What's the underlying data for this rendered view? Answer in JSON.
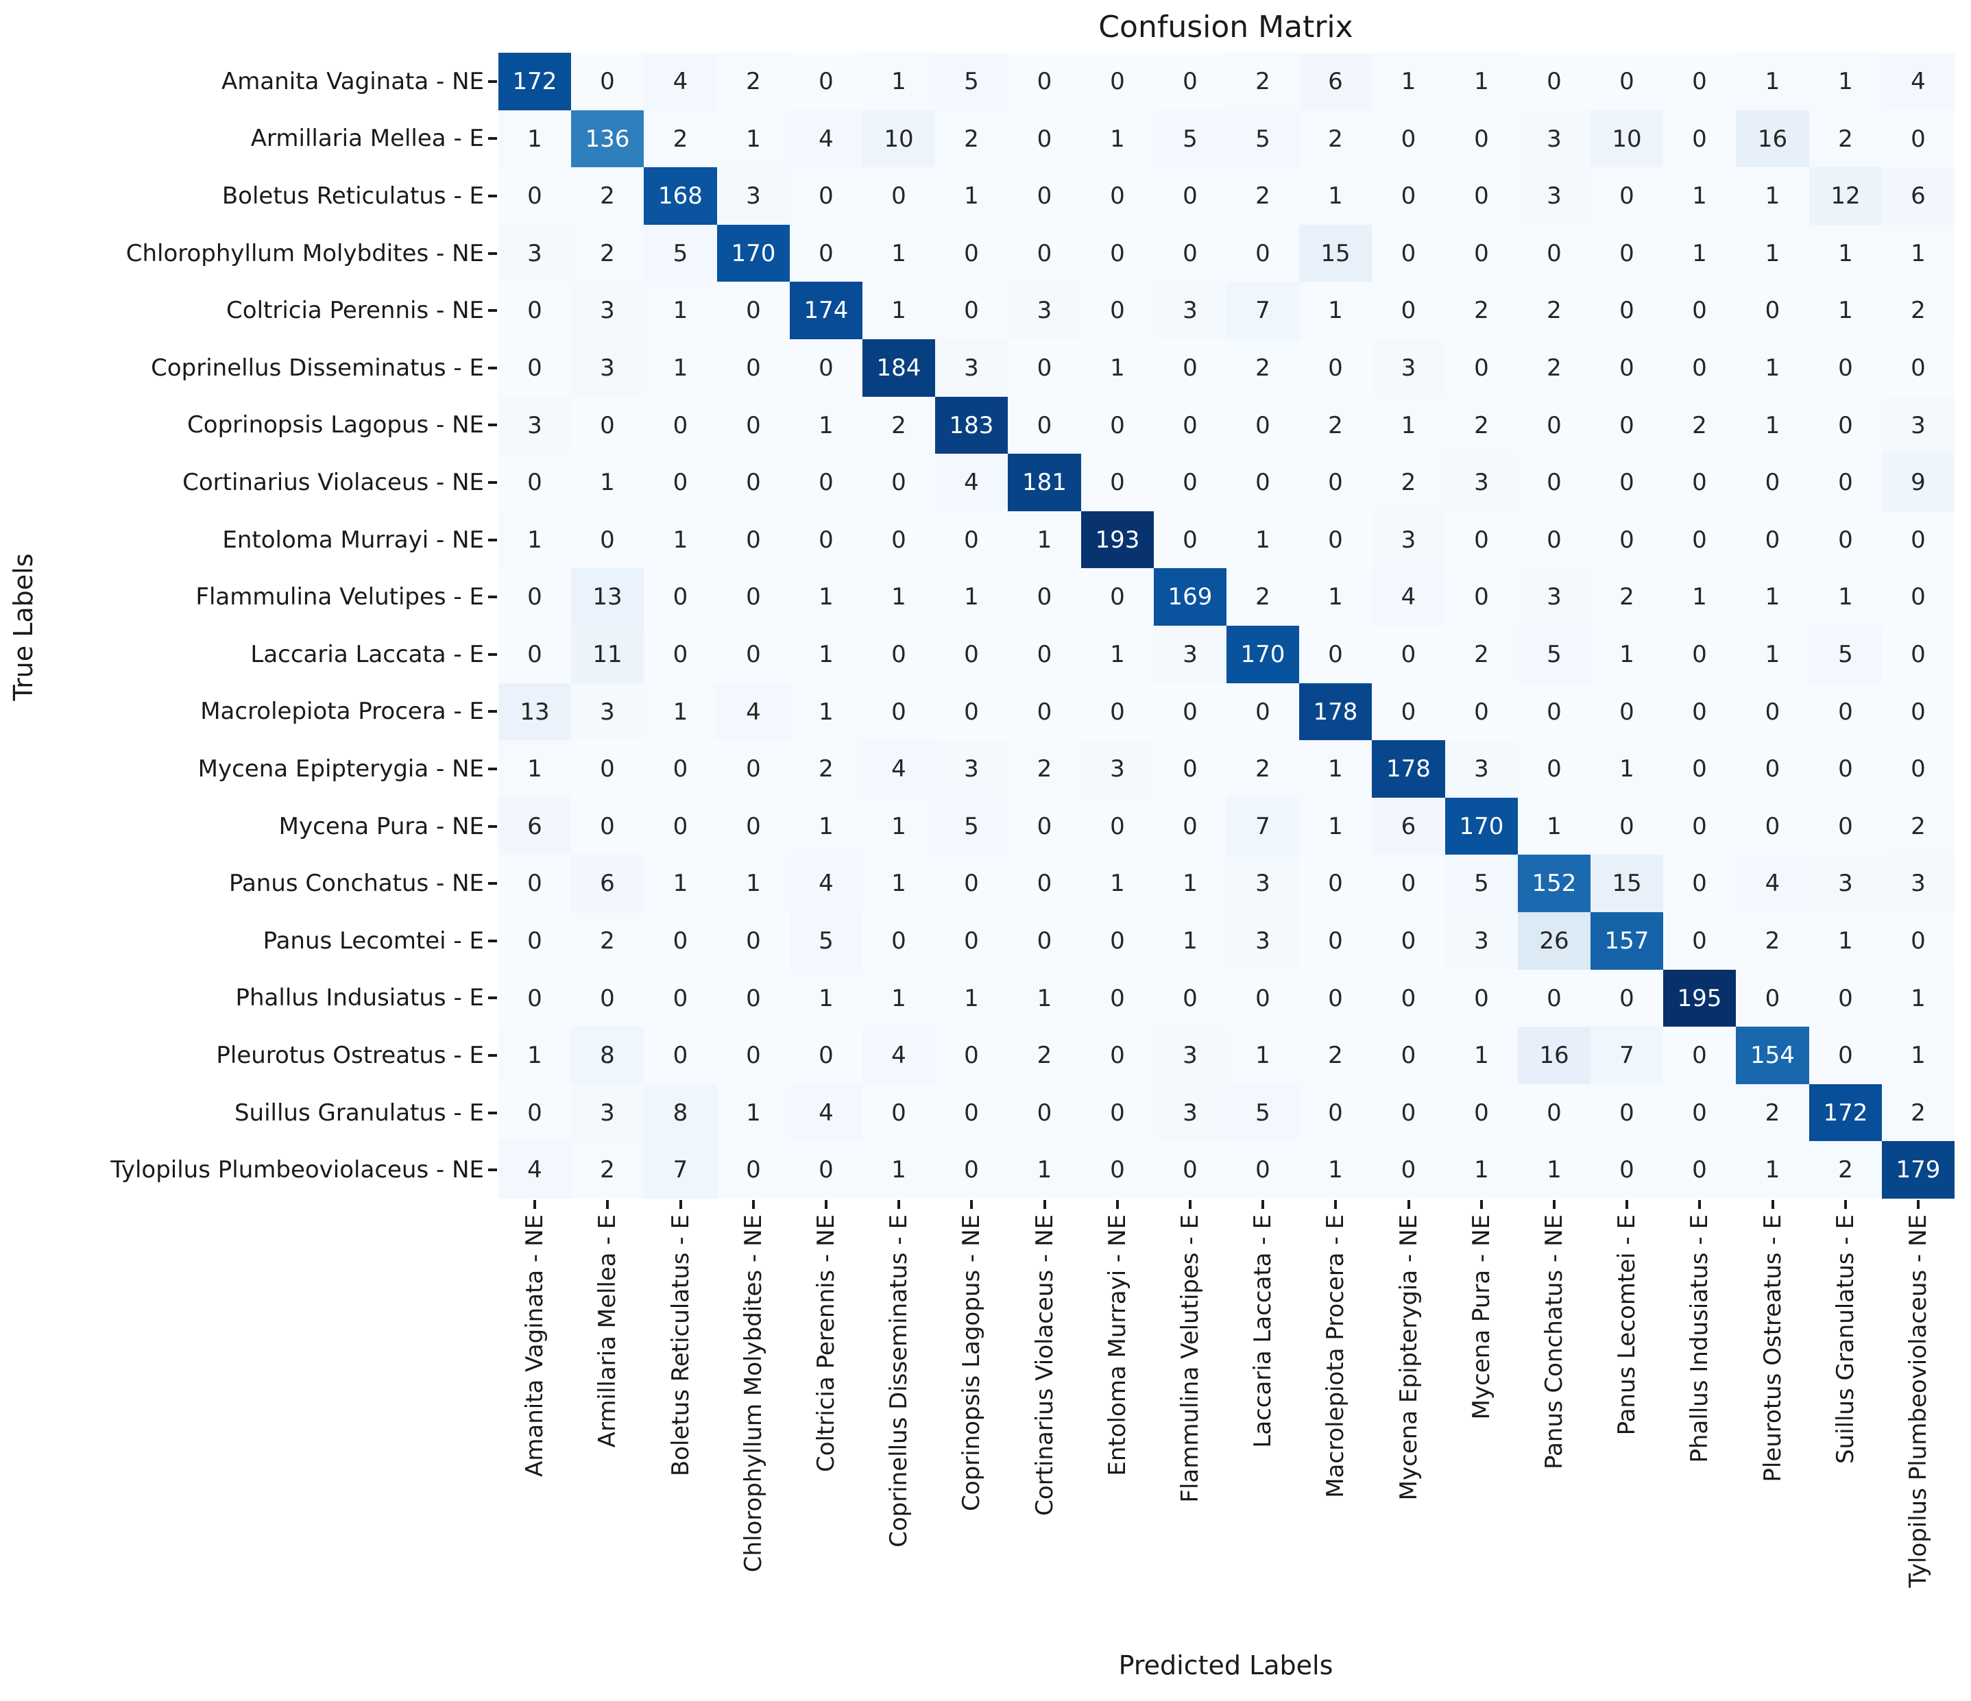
{
  "chart_data": {
    "type": "heatmap",
    "title": "Confusion Matrix",
    "xlabel": "Predicted Labels",
    "ylabel": "True Labels",
    "colormap": "Blues",
    "vmin": 0,
    "vmax": 195,
    "grid": false,
    "legend": "none",
    "x_tick_labels": [
      "Amanita Vaginata - NE",
      "Armillaria Mellea - E",
      "Boletus Reticulatus - E",
      "Chlorophyllum Molybdites - NE",
      "Coltricia Perennis - NE",
      "Coprinellus Disseminatus - E",
      "Coprinopsis Lagopus - NE",
      "Cortinarius Violaceus - NE",
      "Entoloma Murrayi - NE",
      "Flammulina Velutipes - E",
      "Laccaria Laccata - E",
      "Macrolepiota Procera - E",
      "Mycena Epipterygia - NE",
      "Mycena Pura - NE",
      "Panus Conchatus - NE",
      "Panus Lecomtei - E",
      "Phallus Indusiatus - E",
      "Pleurotus Ostreatus - E",
      "Suillus Granulatus - E",
      "Tylopilus Plumbeoviolaceus - NE"
    ],
    "y_tick_labels": [
      "Amanita Vaginata - NE",
      "Armillaria Mellea - E",
      "Boletus Reticulatus - E",
      "Chlorophyllum Molybdites - NE",
      "Coltricia Perennis - NE",
      "Coprinellus Disseminatus - E",
      "Coprinopsis Lagopus - NE",
      "Cortinarius Violaceus - NE",
      "Entoloma Murrayi - NE",
      "Flammulina Velutipes - E",
      "Laccaria Laccata - E",
      "Macrolepiota Procera - E",
      "Mycena Epipterygia - NE",
      "Mycena Pura - NE",
      "Panus Conchatus - NE",
      "Panus Lecomtei - E",
      "Phallus Indusiatus - E",
      "Pleurotus Ostreatus - E",
      "Suillus Granulatus - E",
      "Tylopilus Plumbeoviolaceus - NE"
    ],
    "matrix": [
      [
        172,
        0,
        4,
        2,
        0,
        1,
        5,
        0,
        0,
        0,
        2,
        6,
        1,
        1,
        0,
        0,
        0,
        1,
        1,
        4
      ],
      [
        1,
        136,
        2,
        1,
        4,
        10,
        2,
        0,
        1,
        5,
        5,
        2,
        0,
        0,
        3,
        10,
        0,
        16,
        2,
        0
      ],
      [
        0,
        2,
        168,
        3,
        0,
        0,
        1,
        0,
        0,
        0,
        2,
        1,
        0,
        0,
        3,
        0,
        1,
        1,
        12,
        6
      ],
      [
        3,
        2,
        5,
        170,
        0,
        1,
        0,
        0,
        0,
        0,
        0,
        15,
        0,
        0,
        0,
        0,
        1,
        1,
        1,
        1
      ],
      [
        0,
        3,
        1,
        0,
        174,
        1,
        0,
        3,
        0,
        3,
        7,
        1,
        0,
        2,
        2,
        0,
        0,
        0,
        1,
        2
      ],
      [
        0,
        3,
        1,
        0,
        0,
        184,
        3,
        0,
        1,
        0,
        2,
        0,
        3,
        0,
        2,
        0,
        0,
        1,
        0,
        0
      ],
      [
        3,
        0,
        0,
        0,
        1,
        2,
        183,
        0,
        0,
        0,
        0,
        2,
        1,
        2,
        0,
        0,
        2,
        1,
        0,
        3
      ],
      [
        0,
        1,
        0,
        0,
        0,
        0,
        4,
        181,
        0,
        0,
        0,
        0,
        2,
        3,
        0,
        0,
        0,
        0,
        0,
        9
      ],
      [
        1,
        0,
        1,
        0,
        0,
        0,
        0,
        1,
        193,
        0,
        1,
        0,
        3,
        0,
        0,
        0,
        0,
        0,
        0,
        0
      ],
      [
        0,
        13,
        0,
        0,
        1,
        1,
        1,
        0,
        0,
        169,
        2,
        1,
        4,
        0,
        3,
        2,
        1,
        1,
        1,
        0
      ],
      [
        0,
        11,
        0,
        0,
        1,
        0,
        0,
        0,
        1,
        3,
        170,
        0,
        0,
        2,
        5,
        1,
        0,
        1,
        5,
        0
      ],
      [
        13,
        3,
        1,
        4,
        1,
        0,
        0,
        0,
        0,
        0,
        0,
        178,
        0,
        0,
        0,
        0,
        0,
        0,
        0,
        0
      ],
      [
        1,
        0,
        0,
        0,
        2,
        4,
        3,
        2,
        3,
        0,
        2,
        1,
        178,
        3,
        0,
        1,
        0,
        0,
        0,
        0
      ],
      [
        6,
        0,
        0,
        0,
        1,
        1,
        5,
        0,
        0,
        0,
        7,
        1,
        6,
        170,
        1,
        0,
        0,
        0,
        0,
        2
      ],
      [
        0,
        6,
        1,
        1,
        4,
        1,
        0,
        0,
        1,
        1,
        3,
        0,
        0,
        5,
        152,
        15,
        0,
        4,
        3,
        3
      ],
      [
        0,
        2,
        0,
        0,
        5,
        0,
        0,
        0,
        0,
        1,
        3,
        0,
        0,
        3,
        26,
        157,
        0,
        2,
        1,
        0
      ],
      [
        0,
        0,
        0,
        0,
        1,
        1,
        1,
        1,
        0,
        0,
        0,
        0,
        0,
        0,
        0,
        0,
        195,
        0,
        0,
        1
      ],
      [
        1,
        8,
        0,
        0,
        0,
        4,
        0,
        2,
        0,
        3,
        1,
        2,
        0,
        1,
        16,
        7,
        0,
        154,
        0,
        1
      ],
      [
        0,
        3,
        8,
        1,
        4,
        0,
        0,
        0,
        0,
        3,
        5,
        0,
        0,
        0,
        0,
        0,
        0,
        2,
        172,
        2
      ],
      [
        4,
        2,
        7,
        0,
        0,
        1,
        0,
        1,
        0,
        0,
        0,
        1,
        0,
        1,
        1,
        0,
        0,
        1,
        2,
        179
      ]
    ]
  },
  "colors": {
    "background": "#ffffff",
    "colormap_stops": [
      "#f7fbff",
      "#deebf7",
      "#c6dbef",
      "#9ecae1",
      "#6baed6",
      "#4292c6",
      "#2171b5",
      "#08519c",
      "#08306b"
    ],
    "annot_dark_text": "#262626",
    "annot_light_text": "#ffffff",
    "tick_color": "#1a1a1a"
  }
}
